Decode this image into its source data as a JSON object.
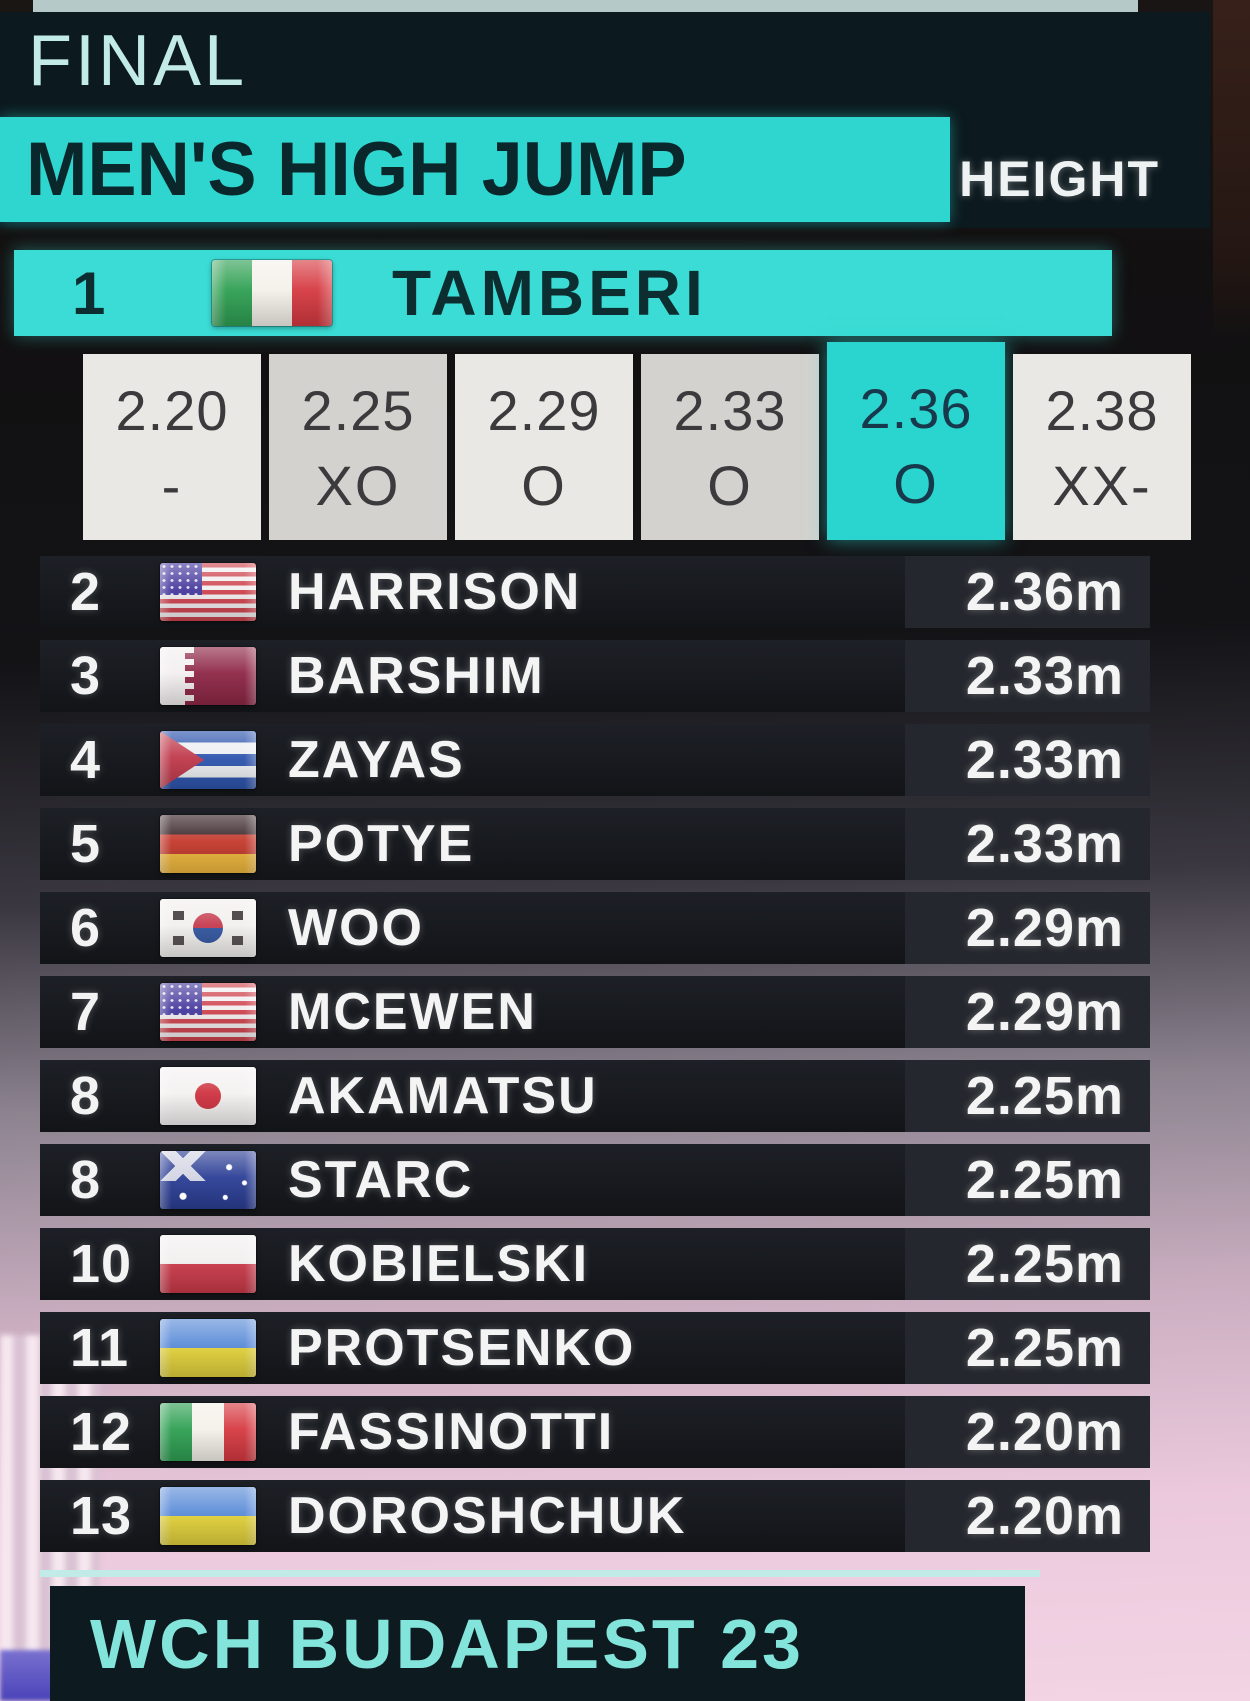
{
  "colors": {
    "accent_cyan": "#2fd6d0",
    "leader_cyan": "#3bdcd5",
    "highlight_cell_cyan": "#2ad5d0",
    "header_bg": "#0c191e",
    "row_bg": "#17191e",
    "result_box_bg": "#24272d",
    "footer_text_color": "#82e4da"
  },
  "header": {
    "round": "FINAL",
    "event": "MEN'S HIGH JUMP",
    "column_label": "HEIGHT"
  },
  "leader": {
    "rank": "1",
    "name": "TAMBERI",
    "country": "Italy",
    "country_code": "it",
    "attempts": [
      {
        "height": "2.20",
        "marks": "-",
        "highlight": false
      },
      {
        "height": "2.25",
        "marks": "XO",
        "highlight": false
      },
      {
        "height": "2.29",
        "marks": "O",
        "highlight": false
      },
      {
        "height": "2.33",
        "marks": "O",
        "highlight": false
      },
      {
        "height": "2.36",
        "marks": "O",
        "highlight": true
      },
      {
        "height": "2.38",
        "marks": "XX-",
        "highlight": false
      }
    ]
  },
  "results": [
    {
      "rank": "2",
      "name": "HARRISON",
      "country": "United States",
      "country_code": "us",
      "height": "2.36m"
    },
    {
      "rank": "3",
      "name": "BARSHIM",
      "country": "Qatar",
      "country_code": "qa",
      "height": "2.33m"
    },
    {
      "rank": "4",
      "name": "ZAYAS",
      "country": "Cuba",
      "country_code": "cu",
      "height": "2.33m"
    },
    {
      "rank": "5",
      "name": "POTYE",
      "country": "Germany",
      "country_code": "de",
      "height": "2.33m"
    },
    {
      "rank": "6",
      "name": "WOO",
      "country": "South Korea",
      "country_code": "kr",
      "height": "2.29m"
    },
    {
      "rank": "7",
      "name": "MCEWEN",
      "country": "United States",
      "country_code": "us",
      "height": "2.29m"
    },
    {
      "rank": "8",
      "name": "AKAMATSU",
      "country": "Japan",
      "country_code": "jp",
      "height": "2.25m"
    },
    {
      "rank": "8",
      "name": "STARC",
      "country": "Australia",
      "country_code": "au",
      "height": "2.25m"
    },
    {
      "rank": "10",
      "name": "KOBIELSKI",
      "country": "Poland",
      "country_code": "pl",
      "height": "2.25m"
    },
    {
      "rank": "11",
      "name": "PROTSENKO",
      "country": "Ukraine",
      "country_code": "ua",
      "height": "2.25m"
    },
    {
      "rank": "12",
      "name": "FASSINOTTI",
      "country": "Italy",
      "country_code": "it",
      "height": "2.20m"
    },
    {
      "rank": "13",
      "name": "DOROSHCHUK",
      "country": "Ukraine",
      "country_code": "ua",
      "height": "2.20m"
    }
  ],
  "footer": {
    "caption": "WCH BUDAPEST 23"
  }
}
